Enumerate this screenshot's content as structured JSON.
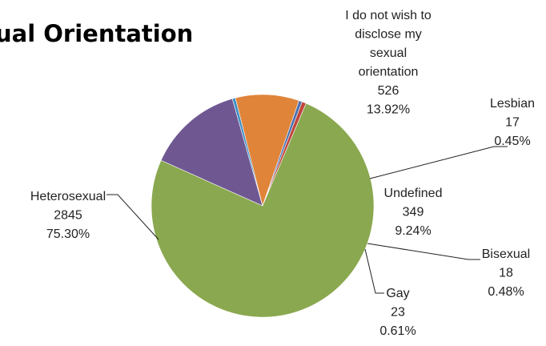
{
  "chart_data": {
    "type": "pie",
    "title": "ual Orientation",
    "slices": [
      {
        "label_lines": [
          "I do not wish to",
          "disclose my",
          "sexual",
          "orientation"
        ],
        "count": "526",
        "percent": "13.92%",
        "value": 13.92,
        "color": "#6f5892"
      },
      {
        "label_lines": [
          "Lesbian"
        ],
        "count": "17",
        "percent": "0.45%",
        "value": 0.45,
        "color": "#3f8fc4"
      },
      {
        "label_lines": [
          "Undefined"
        ],
        "count": "349",
        "percent": "9.24%",
        "value": 9.24,
        "color": "#e0843a"
      },
      {
        "label_lines": [
          "Bisexual"
        ],
        "count": "18",
        "percent": "0.48%",
        "value": 0.48,
        "color": "#4a72b0"
      },
      {
        "label_lines": [
          "Gay"
        ],
        "count": "23",
        "percent": "0.61%",
        "value": 0.61,
        "color": "#c0463d"
      },
      {
        "label_lines": [
          "Heterosexual"
        ],
        "count": "2845",
        "percent": "75.30%",
        "value": 75.3,
        "color": "#8aa84f"
      }
    ]
  }
}
